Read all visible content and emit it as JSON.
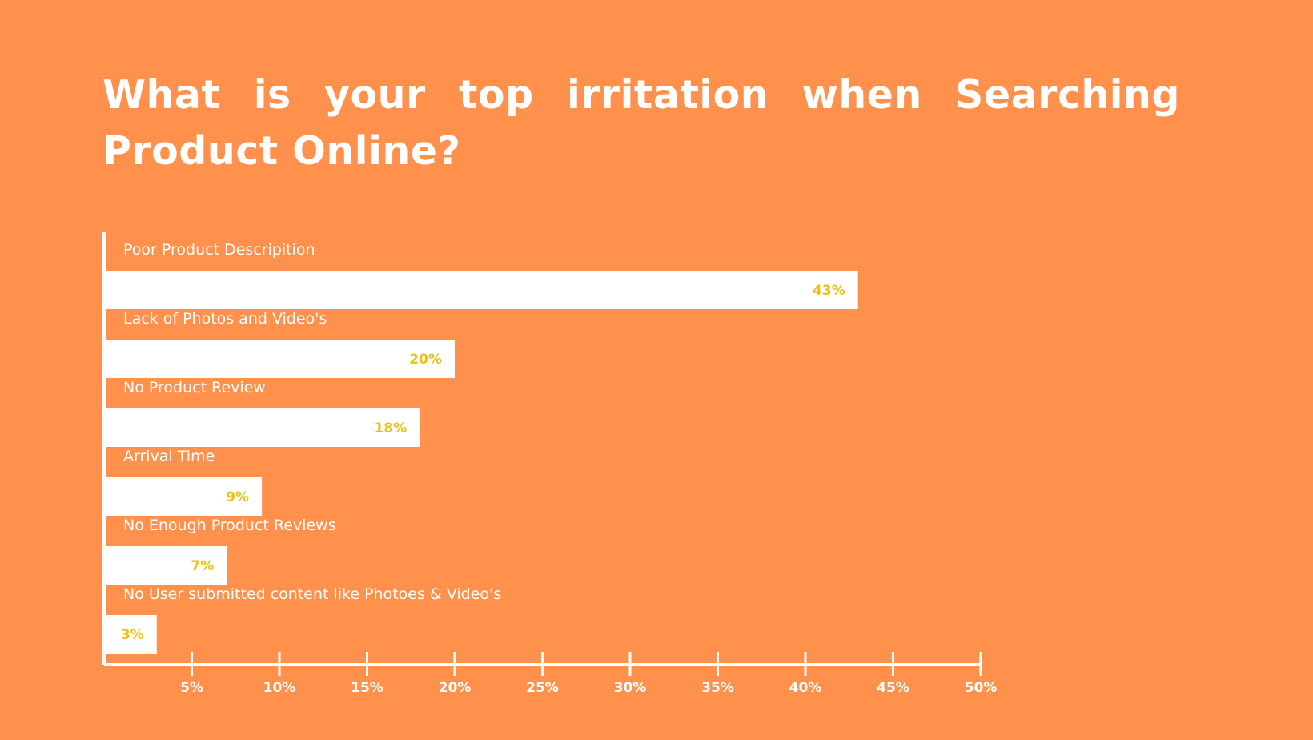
{
  "colors": {
    "background": "#FF914D",
    "bar": "#FFFFFF",
    "value_label": "#E8C21A",
    "text": "#FFFFFF",
    "axis": "#FFFFFF"
  },
  "chart_data": {
    "type": "bar",
    "orientation": "horizontal",
    "title": "What is your top irritation when Searching Product Online?",
    "xlabel": "",
    "ylabel": "",
    "xlim": [
      0,
      50
    ],
    "x_ticks": [
      5,
      10,
      15,
      20,
      25,
      30,
      35,
      40,
      45,
      50
    ],
    "x_tick_labels": [
      "5%",
      "10%",
      "15%",
      "20%",
      "25%",
      "30%",
      "35%",
      "40%",
      "45%",
      "50%"
    ],
    "categories": [
      "Poor Product Descripition",
      "Lack of Photos and Video's",
      "No Product Review",
      "Arrival Time",
      "No Enough Product Reviews",
      "No User submitted content like Photoes & Video's"
    ],
    "values": [
      43,
      20,
      18,
      9,
      7,
      3
    ],
    "value_labels": [
      "43%",
      "20%",
      "18%",
      "9%",
      "7%",
      "3%"
    ],
    "grid": false,
    "legend": "none"
  }
}
